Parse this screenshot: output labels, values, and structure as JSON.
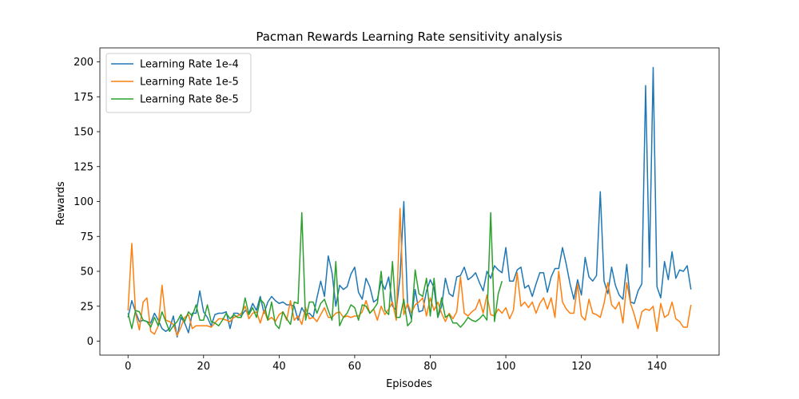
{
  "chart_data": {
    "type": "line",
    "title": "Pacman Rewards Learning Rate sensitivity analysis",
    "xlabel": "Episodes",
    "ylabel": "Rewards",
    "xlim": [
      -7.45,
      156.45
    ],
    "ylim": [
      -10,
      210
    ],
    "xticks": [
      0,
      20,
      40,
      60,
      80,
      100,
      120,
      140
    ],
    "yticks": [
      0,
      25,
      50,
      75,
      100,
      125,
      150,
      175,
      200
    ],
    "grid": false,
    "legend_position": "top-left",
    "series": [
      {
        "name": "Learning Rate 1e-4",
        "color": "#1f77b4",
        "values": [
          17,
          29,
          21,
          14,
          15,
          14,
          13,
          20,
          15,
          9,
          7,
          9,
          18,
          3,
          17,
          13,
          6,
          20,
          20,
          36,
          21,
          17,
          11,
          19,
          20,
          20,
          21,
          9,
          20,
          20,
          18,
          22,
          20,
          27,
          22,
          32,
          20,
          28,
          32,
          29,
          27,
          28,
          26,
          26,
          25,
          15,
          24,
          19,
          20,
          17,
          31,
          43,
          32,
          61,
          49,
          25,
          40,
          37,
          39,
          48,
          53,
          35,
          30,
          45,
          39,
          28,
          30,
          43,
          37,
          46,
          25,
          22,
          46,
          100,
          26,
          16,
          37,
          21,
          22,
          36,
          44,
          38,
          17,
          25,
          45,
          34,
          32,
          46,
          47,
          53,
          44,
          46,
          49,
          42,
          36,
          50,
          45,
          54,
          51,
          49,
          67,
          43,
          43,
          51,
          53,
          38,
          40,
          32,
          41,
          49,
          49,
          35,
          46,
          52,
          52,
          67,
          55,
          41,
          30,
          44,
          33,
          60,
          46,
          43,
          47,
          107,
          43,
          34,
          53,
          40,
          33,
          30,
          55,
          28,
          27,
          36,
          41,
          183,
          53,
          196,
          39,
          31,
          57,
          44,
          64,
          45,
          51,
          50,
          54,
          37
        ]
      },
      {
        "name": "Learning Rate 1e-5",
        "color": "#ff7f0e",
        "values": [
          22,
          70,
          20,
          8,
          28,
          31,
          7,
          5,
          11,
          40,
          15,
          14,
          12,
          4,
          10,
          17,
          19,
          9,
          11,
          11,
          11,
          11,
          10,
          13,
          16,
          16,
          15,
          14,
          17,
          18,
          20,
          25,
          16,
          20,
          21,
          13,
          22,
          15,
          17,
          14,
          19,
          21,
          15,
          29,
          15,
          18,
          12,
          24,
          16,
          17,
          14,
          19,
          24,
          17,
          17,
          20,
          21,
          17,
          18,
          17,
          18,
          18,
          21,
          29,
          20,
          23,
          15,
          25,
          19,
          23,
          28,
          15,
          95,
          19,
          27,
          20,
          26,
          28,
          31,
          18,
          31,
          22,
          28,
          20,
          14,
          20,
          16,
          21,
          46,
          20,
          18,
          21,
          23,
          30,
          20,
          33,
          19,
          18,
          23,
          20,
          24,
          16,
          22,
          49,
          25,
          28,
          24,
          28,
          20,
          27,
          31,
          23,
          31,
          17,
          50,
          28,
          23,
          20,
          20,
          41,
          18,
          15,
          30,
          20,
          19,
          17,
          27,
          42,
          26,
          23,
          28,
          13,
          42,
          27,
          19,
          9,
          21,
          23,
          22,
          25,
          7,
          27,
          17,
          19,
          28,
          16,
          14,
          10,
          10,
          26
        ]
      },
      {
        "name": "Learning Rate 8e-5",
        "color": "#2ca02c",
        "values": [
          20,
          9,
          22,
          21,
          15,
          14,
          10,
          17,
          11,
          21,
          14,
          7,
          11,
          14,
          19,
          14,
          21,
          18,
          26,
          15,
          15,
          26,
          14,
          13,
          11,
          15,
          20,
          16,
          19,
          17,
          17,
          31,
          19,
          24,
          17,
          30,
          27,
          15,
          28,
          12,
          9,
          21,
          16,
          12,
          28,
          27,
          92,
          15,
          28,
          28,
          20,
          27,
          30,
          22,
          15,
          57,
          11,
          17,
          20,
          26,
          24,
          15,
          26,
          25,
          20,
          23,
          27,
          50,
          22,
          19,
          57,
          17,
          17,
          30,
          11,
          14,
          51,
          34,
          32,
          45,
          18,
          45,
          17,
          31,
          17,
          19,
          13,
          13,
          10,
          13,
          17,
          15,
          14,
          16,
          19,
          15,
          92,
          14,
          34,
          43
        ]
      }
    ]
  }
}
